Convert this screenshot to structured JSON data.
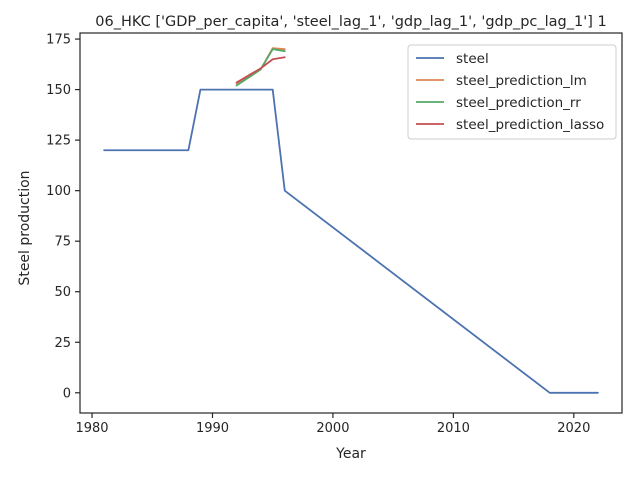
{
  "chart_data": {
    "type": "line",
    "title": "06_HKC ['GDP_per_capita', 'steel_lag_1', 'gdp_lag_1', 'gdp_pc_lag_1'] 1",
    "xlabel": "Year",
    "ylabel": "Steel production",
    "xlim": [
      1979,
      2024
    ],
    "ylim": [
      -10,
      178
    ],
    "xticks": [
      1980,
      1990,
      2000,
      2010,
      2020
    ],
    "yticks": [
      0,
      25,
      50,
      75,
      100,
      125,
      150,
      175
    ],
    "grid": false,
    "legend_position": "top-right",
    "series": [
      {
        "name": "steel",
        "color": "#4c72b0",
        "x": [
          1981,
          1988,
          1989,
          1995,
          1996,
          2018,
          2022
        ],
        "y": [
          120,
          120,
          150,
          150,
          100,
          0,
          0
        ]
      },
      {
        "name": "steel_prediction_lm",
        "color": "#dd8452",
        "x": [
          1992,
          1993,
          1994,
          1995,
          1996
        ],
        "y": [
          153,
          156,
          160,
          170.5,
          170
        ]
      },
      {
        "name": "steel_prediction_rr",
        "color": "#55a868",
        "x": [
          1992,
          1993,
          1994,
          1995,
          1996
        ],
        "y": [
          152,
          156,
          160,
          170,
          169
        ]
      },
      {
        "name": "steel_prediction_lasso",
        "color": "#c44e52",
        "x": [
          1992,
          1993,
          1994,
          1995,
          1996
        ],
        "y": [
          153.5,
          157,
          160.5,
          165,
          166
        ]
      }
    ]
  }
}
